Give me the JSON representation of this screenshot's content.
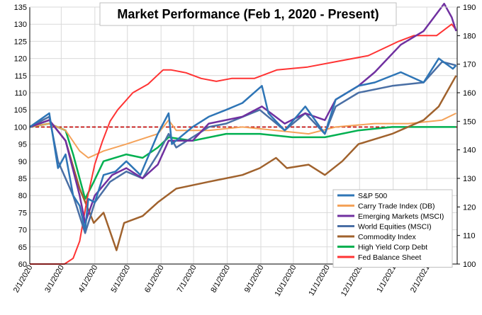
{
  "chart_data": {
    "type": "line",
    "title": "Market Performance (Feb 1, 2020 - Present)",
    "x_tick_labels": [
      "2/1/2020",
      "3/1/2020",
      "4/1/2020",
      "5/1/2020",
      "6/1/2020",
      "7/1/2020",
      "8/1/2020",
      "9/1/2020",
      "10/1/2020",
      "11/1/2020",
      "12/1/2020",
      "1/1/2021",
      "2/1/2021"
    ],
    "x_range": [
      "2020-02-01",
      "2021-03-01"
    ],
    "y_left": {
      "range": [
        60,
        135
      ],
      "ticks": [
        "60",
        "65",
        "70",
        "75",
        "80",
        "85",
        "90",
        "95",
        "100",
        "105",
        "110",
        "115",
        "120",
        "125",
        "130",
        "135"
      ]
    },
    "y_right": {
      "range": [
        100,
        190
      ],
      "ticks": [
        "100",
        "110",
        "120",
        "130",
        "140",
        "150",
        "160",
        "170",
        "180",
        "190"
      ]
    },
    "reference_line": {
      "value": 100,
      "axis": "left",
      "style": "dashed",
      "color": "#c00000"
    },
    "grid": true,
    "legend_position": "bottom-right",
    "series": [
      {
        "name": "S&P 500",
        "color": "#2e75b6",
        "axis": "left",
        "width": 2.5,
        "points": [
          [
            "2020-02-01",
            100
          ],
          [
            "2020-02-10",
            102
          ],
          [
            "2020-02-19",
            104
          ],
          [
            "2020-02-27",
            88
          ],
          [
            "2020-03-05",
            92
          ],
          [
            "2020-03-12",
            80
          ],
          [
            "2020-03-18",
            77
          ],
          [
            "2020-03-23",
            70
          ],
          [
            "2020-03-26",
            79
          ],
          [
            "2020-04-01",
            78
          ],
          [
            "2020-04-09",
            86
          ],
          [
            "2020-04-20",
            87
          ],
          [
            "2020-04-30",
            90
          ],
          [
            "2020-05-13",
            86
          ],
          [
            "2020-05-29",
            98
          ],
          [
            "2020-06-08",
            104
          ],
          [
            "2020-06-11",
            95
          ],
          [
            "2020-06-30",
            100
          ],
          [
            "2020-07-15",
            103
          ],
          [
            "2020-07-31",
            105
          ],
          [
            "2020-08-15",
            107
          ],
          [
            "2020-09-02",
            112
          ],
          [
            "2020-09-08",
            104
          ],
          [
            "2020-09-23",
            99
          ],
          [
            "2020-10-12",
            106
          ],
          [
            "2020-10-30",
            98
          ],
          [
            "2020-11-09",
            108
          ],
          [
            "2020-11-30",
            112
          ],
          [
            "2020-12-15",
            113
          ],
          [
            "2021-01-08",
            116
          ],
          [
            "2021-01-29",
            113
          ],
          [
            "2021-02-12",
            120
          ],
          [
            "2021-02-25",
            117
          ],
          [
            "2021-02-28",
            118
          ]
        ]
      },
      {
        "name": "Carry Trade Index (DB)",
        "color": "#f4a259",
        "axis": "left",
        "width": 2,
        "points": [
          [
            "2020-02-01",
            100
          ],
          [
            "2020-02-19",
            101
          ],
          [
            "2020-03-05",
            99
          ],
          [
            "2020-03-18",
            93
          ],
          [
            "2020-03-26",
            91
          ],
          [
            "2020-04-09",
            93
          ],
          [
            "2020-04-30",
            95
          ],
          [
            "2020-05-29",
            98
          ],
          [
            "2020-06-08",
            102
          ],
          [
            "2020-06-15",
            99
          ],
          [
            "2020-07-15",
            99
          ],
          [
            "2020-08-15",
            100
          ],
          [
            "2020-09-15",
            99
          ],
          [
            "2020-10-15",
            98
          ],
          [
            "2020-11-09",
            100
          ],
          [
            "2020-12-15",
            101
          ],
          [
            "2021-01-15",
            101
          ],
          [
            "2021-02-15",
            102
          ],
          [
            "2021-02-28",
            104
          ]
        ]
      },
      {
        "name": "Emerging Markets (MSCI)",
        "color": "#7030a0",
        "axis": "left",
        "width": 2.5,
        "points": [
          [
            "2020-02-01",
            100
          ],
          [
            "2020-02-19",
            102
          ],
          [
            "2020-03-05",
            96
          ],
          [
            "2020-03-18",
            80
          ],
          [
            "2020-03-23",
            72
          ],
          [
            "2020-04-01",
            80
          ],
          [
            "2020-04-17",
            86
          ],
          [
            "2020-04-30",
            88
          ],
          [
            "2020-05-15",
            85
          ],
          [
            "2020-05-29",
            89
          ],
          [
            "2020-06-08",
            96
          ],
          [
            "2020-06-30",
            96
          ],
          [
            "2020-07-15",
            101
          ],
          [
            "2020-08-15",
            103
          ],
          [
            "2020-09-02",
            106
          ],
          [
            "2020-09-23",
            101
          ],
          [
            "2020-10-12",
            104
          ],
          [
            "2020-10-30",
            102
          ],
          [
            "2020-11-09",
            108
          ],
          [
            "2020-11-30",
            112
          ],
          [
            "2020-12-15",
            116
          ],
          [
            "2021-01-08",
            124
          ],
          [
            "2021-01-29",
            128
          ],
          [
            "2021-02-17",
            136
          ],
          [
            "2021-02-24",
            132
          ],
          [
            "2021-02-28",
            128
          ]
        ]
      },
      {
        "name": "World Equities (MSCI)",
        "color": "#4a6fa5",
        "axis": "left",
        "width": 2.5,
        "points": [
          [
            "2020-02-01",
            100
          ],
          [
            "2020-02-19",
            103
          ],
          [
            "2020-02-27",
            90
          ],
          [
            "2020-03-12",
            80
          ],
          [
            "2020-03-23",
            69
          ],
          [
            "2020-04-01",
            78
          ],
          [
            "2020-04-15",
            84
          ],
          [
            "2020-04-30",
            87
          ],
          [
            "2020-05-15",
            85
          ],
          [
            "2020-05-29",
            92
          ],
          [
            "2020-06-08",
            98
          ],
          [
            "2020-06-15",
            94
          ],
          [
            "2020-06-30",
            97
          ],
          [
            "2020-07-15",
            100
          ],
          [
            "2020-07-31",
            101
          ],
          [
            "2020-08-31",
            105
          ],
          [
            "2020-09-23",
            99
          ],
          [
            "2020-10-12",
            104
          ],
          [
            "2020-10-30",
            98
          ],
          [
            "2020-11-09",
            106
          ],
          [
            "2020-11-30",
            110
          ],
          [
            "2020-12-31",
            112
          ],
          [
            "2021-01-29",
            113
          ],
          [
            "2021-02-15",
            119
          ],
          [
            "2021-02-28",
            118
          ]
        ]
      },
      {
        "name": "Commodity Index",
        "color": "#a0622d",
        "axis": "left",
        "width": 2.5,
        "points": [
          [
            "2020-02-01",
            100
          ],
          [
            "2020-02-19",
            102
          ],
          [
            "2020-03-05",
            96
          ],
          [
            "2020-03-18",
            82
          ],
          [
            "2020-03-31",
            72
          ],
          [
            "2020-04-09",
            75
          ],
          [
            "2020-04-21",
            64
          ],
          [
            "2020-04-28",
            72
          ],
          [
            "2020-05-15",
            74
          ],
          [
            "2020-05-29",
            78
          ],
          [
            "2020-06-15",
            82
          ],
          [
            "2020-07-15",
            84
          ],
          [
            "2020-08-15",
            86
          ],
          [
            "2020-08-31",
            88
          ],
          [
            "2020-09-15",
            91
          ],
          [
            "2020-09-25",
            88
          ],
          [
            "2020-10-15",
            89
          ],
          [
            "2020-10-30",
            86
          ],
          [
            "2020-11-15",
            90
          ],
          [
            "2020-11-30",
            95
          ],
          [
            "2020-12-31",
            98
          ],
          [
            "2021-01-29",
            102
          ],
          [
            "2021-02-12",
            106
          ],
          [
            "2021-02-28",
            115
          ]
        ]
      },
      {
        "name": "High Yield Corp Debt",
        "color": "#00b050",
        "axis": "left",
        "width": 2.5,
        "points": [
          [
            "2020-02-01",
            100
          ],
          [
            "2020-02-19",
            101
          ],
          [
            "2020-03-05",
            99
          ],
          [
            "2020-03-12",
            92
          ],
          [
            "2020-03-23",
            79
          ],
          [
            "2020-03-31",
            84
          ],
          [
            "2020-04-09",
            90
          ],
          [
            "2020-04-30",
            92
          ],
          [
            "2020-05-15",
            91
          ],
          [
            "2020-05-29",
            94
          ],
          [
            "2020-06-08",
            97
          ],
          [
            "2020-06-30",
            96
          ],
          [
            "2020-07-31",
            98
          ],
          [
            "2020-08-31",
            98
          ],
          [
            "2020-09-30",
            97
          ],
          [
            "2020-10-30",
            97
          ],
          [
            "2020-11-30",
            99
          ],
          [
            "2020-12-31",
            100
          ],
          [
            "2021-01-31",
            100
          ],
          [
            "2021-02-28",
            100
          ]
        ]
      },
      {
        "name": "Fed Balance Sheet",
        "color": "#ff3333",
        "axis": "right",
        "width": 2,
        "points": [
          [
            "2020-02-01",
            100
          ],
          [
            "2020-03-04",
            100
          ],
          [
            "2020-03-12",
            102
          ],
          [
            "2020-03-18",
            108
          ],
          [
            "2020-03-25",
            123
          ],
          [
            "2020-04-01",
            135
          ],
          [
            "2020-04-08",
            143
          ],
          [
            "2020-04-15",
            150
          ],
          [
            "2020-04-22",
            154
          ],
          [
            "2020-05-06",
            160
          ],
          [
            "2020-05-20",
            163
          ],
          [
            "2020-06-03",
            168
          ],
          [
            "2020-06-10",
            168
          ],
          [
            "2020-06-24",
            167
          ],
          [
            "2020-07-08",
            165
          ],
          [
            "2020-07-22",
            164
          ],
          [
            "2020-08-05",
            165
          ],
          [
            "2020-08-26",
            165
          ],
          [
            "2020-09-16",
            168
          ],
          [
            "2020-10-14",
            169
          ],
          [
            "2020-11-11",
            171
          ],
          [
            "2020-12-09",
            173
          ],
          [
            "2021-01-06",
            178
          ],
          [
            "2021-01-20",
            180
          ],
          [
            "2021-02-10",
            180
          ],
          [
            "2021-02-24",
            184
          ],
          [
            "2021-02-28",
            182
          ]
        ]
      }
    ]
  }
}
